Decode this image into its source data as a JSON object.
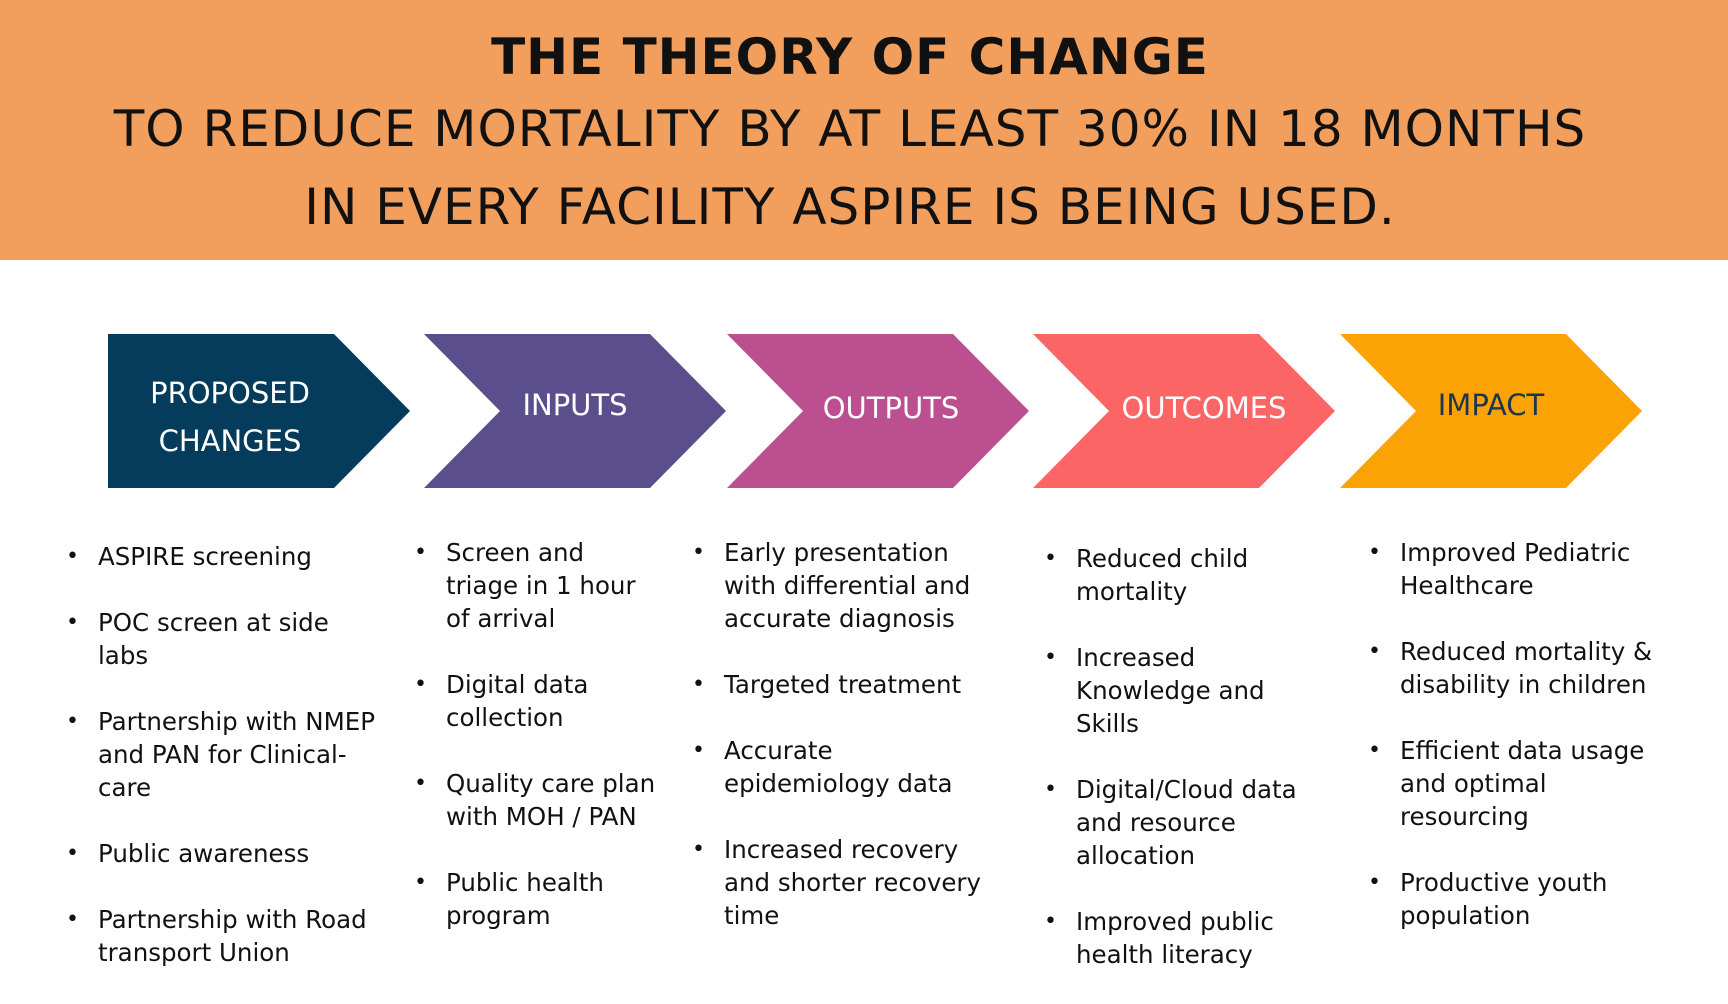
{
  "header": {
    "title": "THE THEORY OF CHANGE",
    "subtitle_line1": "TO REDUCE MORTALITY BY  AT LEAST 30% IN 18 MONTHS",
    "subtitle_line2": "IN EVERY FACILITY ASPIRE IS BEING USED."
  },
  "colors": {
    "banner": "#f29e5c",
    "proposed_changes": "#053b5b",
    "inputs": "#5a4f8c",
    "outputs": "#bb4f90",
    "outcomes": "#fc6565",
    "impact": "#fba305"
  },
  "stages": [
    {
      "label_line1": "PROPOSED",
      "label_line2": "CHANGES",
      "bullets": [
        "ASPIRE screening",
        "POC screen at side labs",
        "Partnership with NMEP and PAN for Clinical-care",
        "Public awareness",
        "Partnership with Road transport Union"
      ]
    },
    {
      "label": "INPUTS",
      "bullets": [
        "Screen and triage in 1 hour of arrival",
        "Digital data collection",
        "Quality care plan with MOH / PAN",
        "Public health program"
      ]
    },
    {
      "label": "OUTPUTS",
      "bullets": [
        "Early presentation with differential and accurate diagnosis",
        "Targeted treatment",
        "Accurate epidemiology data",
        "Increased recovery and shorter recovery time"
      ]
    },
    {
      "label": "OUTCOMES",
      "bullets": [
        "Reduced child mortality",
        "Increased Knowledge and Skills",
        "Digital/Cloud data and resource allocation",
        "Improved public health literacy"
      ]
    },
    {
      "label": "IMPACT",
      "bullets": [
        "Improved Pediatric Healthcare",
        "Reduced mortality & disability in children",
        "Efficient data usage and optimal resourcing",
        "Productive youth population"
      ]
    }
  ]
}
